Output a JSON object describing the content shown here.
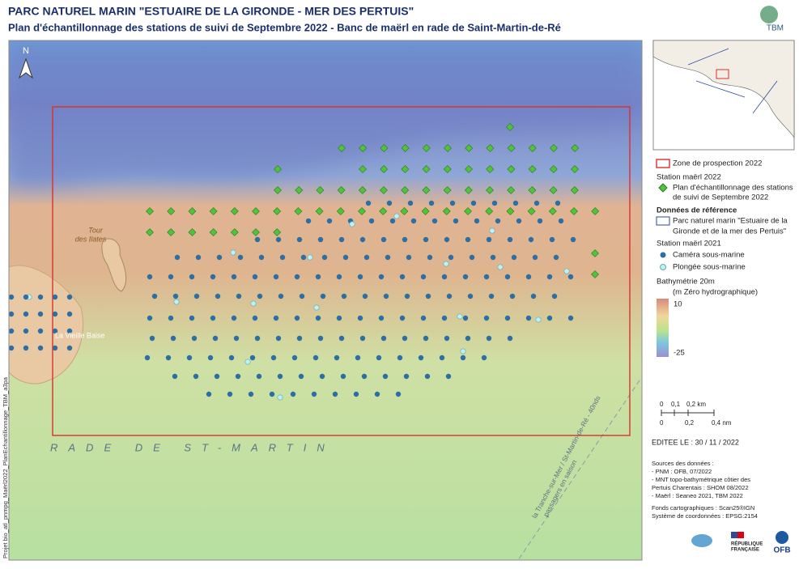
{
  "header": {
    "title": "PARC NATUREL MARIN \"ESTUAIRE DE LA GIRONDE - MER DES PERTUIS\"",
    "subtitle": "Plan d'échantillonnage des stations de suivi de Septembre 2022 - Banc de maërl en rade de Saint-Martin-de-Ré",
    "logo": "TBM"
  },
  "map": {
    "north": "N",
    "tower": [
      "Tour",
      "des Ilates"
    ],
    "village": "La Vieille Baise",
    "bay": "RADE DE ST-MARTIN",
    "ferry": [
      "la Tranche-sur-Mer / St-Martin-de-Ré - 40nds",
      "passagers en saison"
    ],
    "project": "Projet bio_atl_pnmpg_Maërl2022_PlanEchantillonnage_TBM_a3pa"
  },
  "legend": {
    "zone": "Zone de prospection 2022",
    "station_2022": "Station maërl 2022",
    "plan": [
      "Plan d'échantillonnage des stations",
      "de suivi de Septembre 2022"
    ],
    "reference": "Données de référence",
    "park": [
      "Parc naturel marin \"Estuaire de la",
      "Gironde et de la mer des Pertuis\""
    ],
    "station_2021": "Station maërl 2021",
    "camera": "Caméra sous-marine",
    "dive": "Plongée sous-marine",
    "bathy": [
      "Bathymétrie 20m",
      "(m Zéro hydrographique)"
    ],
    "bathy_max": "10",
    "bathy_min": "-25"
  },
  "scale": {
    "km": [
      "0",
      "0,1",
      "0,2 km"
    ],
    "nm": [
      "0",
      "0,2",
      "0,4 nm"
    ]
  },
  "edition": "EDITEE LE : 30 / 11 / 2022",
  "sources": [
    "Sources des données :",
    "- PNM : OFB, 07/2022",
    "- MNT topo-bathymétrique côtier des",
    "Pertuis Charentais : SHOM 08/2022",
    "- Maërl : Seaneo 2021, TBM 2022"
  ],
  "basemap": [
    "Fonds cartographiques : Scan25®IGN",
    "Système de coordonnées : EPSG:2154"
  ],
  "logos": {
    "republic": [
      "RÉPUBLIQUE",
      "FRANÇAISE"
    ],
    "ofb": "OFB"
  }
}
